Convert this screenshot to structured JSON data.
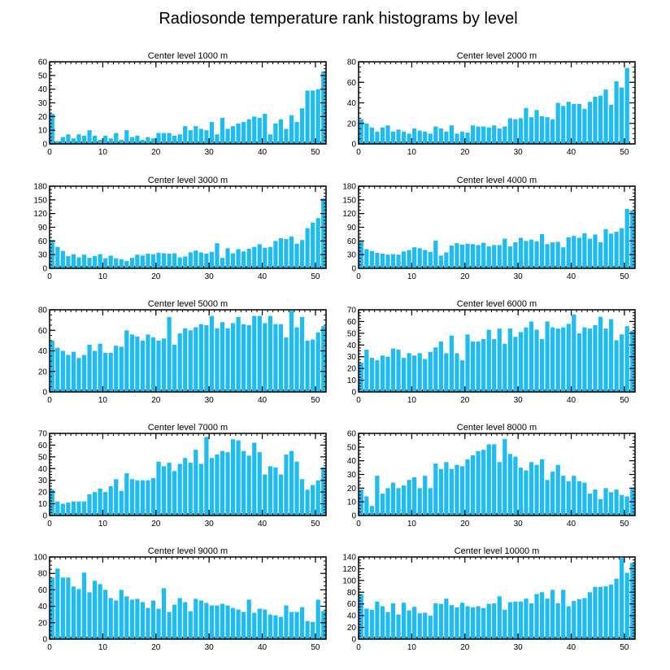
{
  "title": "Radiosonde temperature rank histograms by level",
  "colors": {
    "bar": "#1fbcf2",
    "axis": "#000000"
  },
  "chart_data": [
    {
      "type": "bar",
      "title": "Center level 1000 m",
      "x": [
        0,
        1,
        2,
        3,
        4,
        5,
        6,
        7,
        8,
        9,
        10,
        11,
        12,
        13,
        14,
        15,
        16,
        17,
        18,
        19,
        20,
        21,
        22,
        23,
        24,
        25,
        26,
        27,
        28,
        29,
        30,
        31,
        32,
        33,
        34,
        35,
        36,
        37,
        38,
        39,
        40,
        41,
        42,
        43,
        44,
        45,
        46,
        47,
        48,
        49,
        50,
        51
      ],
      "values": [
        22,
        2,
        5,
        7,
        4,
        7,
        6,
        10,
        6,
        3,
        6,
        4,
        8,
        3,
        10,
        5,
        6,
        3,
        5,
        4,
        8,
        8,
        8,
        6,
        7,
        13,
        10,
        13,
        11,
        10,
        16,
        7,
        19,
        11,
        13,
        15,
        16,
        18,
        20,
        19,
        22,
        7,
        15,
        18,
        11,
        21,
        16,
        26,
        39,
        39,
        40,
        53
      ],
      "xlim": [
        0,
        52
      ],
      "ylim": [
        0,
        60
      ],
      "xticks": [
        0,
        10,
        20,
        30,
        40,
        50
      ],
      "yticks": [
        0,
        10,
        20,
        30,
        40,
        50,
        60
      ],
      "xlabel": "",
      "ylabel": ""
    },
    {
      "type": "bar",
      "title": "Center level 2000 m",
      "x": [
        0,
        1,
        2,
        3,
        4,
        5,
        6,
        7,
        8,
        9,
        10,
        11,
        12,
        13,
        14,
        15,
        16,
        17,
        18,
        19,
        20,
        21,
        22,
        23,
        24,
        25,
        26,
        27,
        28,
        29,
        30,
        31,
        32,
        33,
        34,
        35,
        36,
        37,
        38,
        39,
        40,
        41,
        42,
        43,
        44,
        45,
        46,
        47,
        48,
        49,
        50,
        51
      ],
      "values": [
        24,
        20,
        16,
        12,
        16,
        18,
        12,
        14,
        12,
        10,
        15,
        13,
        12,
        10,
        17,
        15,
        12,
        18,
        10,
        12,
        11,
        18,
        17,
        17,
        16,
        18,
        15,
        17,
        25,
        24,
        25,
        35,
        26,
        33,
        27,
        26,
        24,
        40,
        37,
        41,
        39,
        39,
        34,
        41,
        46,
        47,
        53,
        38,
        61,
        55,
        74,
        0
      ],
      "xlim": [
        0,
        52
      ],
      "ylim": [
        0,
        80
      ],
      "xticks": [
        0,
        10,
        20,
        30,
        40,
        50
      ],
      "yticks": [
        0,
        20,
        40,
        60,
        80
      ],
      "xlabel": "",
      "ylabel": ""
    },
    {
      "type": "bar",
      "title": "Center level 3000 m",
      "x": [
        0,
        1,
        2,
        3,
        4,
        5,
        6,
        7,
        8,
        9,
        10,
        11,
        12,
        13,
        14,
        15,
        16,
        17,
        18,
        19,
        20,
        21,
        22,
        23,
        24,
        25,
        26,
        27,
        28,
        29,
        30,
        31,
        32,
        33,
        34,
        35,
        36,
        37,
        38,
        39,
        40,
        41,
        42,
        43,
        44,
        45,
        46,
        47,
        48,
        49,
        50,
        51
      ],
      "values": [
        62,
        47,
        38,
        27,
        31,
        24,
        30,
        23,
        27,
        31,
        22,
        28,
        22,
        20,
        16,
        23,
        30,
        28,
        32,
        31,
        34,
        33,
        32,
        33,
        24,
        26,
        35,
        39,
        35,
        32,
        36,
        55,
        23,
        44,
        33,
        42,
        37,
        43,
        47,
        53,
        45,
        47,
        60,
        66,
        64,
        70,
        54,
        62,
        88,
        100,
        110,
        153
      ],
      "xlim": [
        0,
        52
      ],
      "ylim": [
        0,
        180
      ],
      "xticks": [
        0,
        10,
        20,
        30,
        40,
        50
      ],
      "yticks": [
        0,
        30,
        60,
        90,
        120,
        150,
        180
      ],
      "xlabel": "",
      "ylabel": ""
    },
    {
      "type": "bar",
      "title": "Center level 4000 m",
      "x": [
        0,
        1,
        2,
        3,
        4,
        5,
        6,
        7,
        8,
        9,
        10,
        11,
        12,
        13,
        14,
        15,
        16,
        17,
        18,
        19,
        20,
        21,
        22,
        23,
        24,
        25,
        26,
        27,
        28,
        29,
        30,
        31,
        32,
        33,
        34,
        35,
        36,
        37,
        38,
        39,
        40,
        41,
        42,
        43,
        44,
        45,
        46,
        47,
        48,
        49,
        50,
        51
      ],
      "values": [
        61,
        42,
        38,
        34,
        32,
        30,
        31,
        30,
        37,
        40,
        46,
        44,
        40,
        36,
        61,
        28,
        35,
        50,
        55,
        52,
        54,
        53,
        51,
        56,
        48,
        51,
        51,
        65,
        48,
        57,
        67,
        60,
        63,
        59,
        75,
        53,
        57,
        58,
        46,
        68,
        71,
        67,
        77,
        65,
        74,
        57,
        86,
        76,
        80,
        88,
        130,
        127
      ],
      "xlim": [
        0,
        52
      ],
      "ylim": [
        0,
        180
      ],
      "xticks": [
        0,
        10,
        20,
        30,
        40,
        50
      ],
      "yticks": [
        0,
        30,
        60,
        90,
        120,
        150,
        180
      ],
      "xlabel": "",
      "ylabel": ""
    },
    {
      "type": "bar",
      "title": "Center level 5000 m",
      "x": [
        0,
        1,
        2,
        3,
        4,
        5,
        6,
        7,
        8,
        9,
        10,
        11,
        12,
        13,
        14,
        15,
        16,
        17,
        18,
        19,
        20,
        21,
        22,
        23,
        24,
        25,
        26,
        27,
        28,
        29,
        30,
        31,
        32,
        33,
        34,
        35,
        36,
        37,
        38,
        39,
        40,
        41,
        42,
        43,
        44,
        45,
        46,
        47,
        48,
        49,
        50,
        51
      ],
      "values": [
        50,
        43,
        40,
        36,
        39,
        33,
        36,
        46,
        40,
        47,
        38,
        38,
        45,
        44,
        60,
        56,
        54,
        50,
        56,
        53,
        50,
        52,
        73,
        46,
        57,
        62,
        60,
        63,
        66,
        65,
        74,
        62,
        68,
        62,
        67,
        73,
        66,
        65,
        74,
        74,
        67,
        74,
        66,
        66,
        53,
        79,
        63,
        73,
        50,
        51,
        58,
        64
      ],
      "xlim": [
        0,
        52
      ],
      "ylim": [
        0,
        80
      ],
      "xticks": [
        0,
        10,
        20,
        30,
        40,
        50
      ],
      "yticks": [
        0,
        20,
        40,
        60,
        80
      ],
      "xlabel": "",
      "ylabel": ""
    },
    {
      "type": "bar",
      "title": "Center level 6000 m",
      "x": [
        0,
        1,
        2,
        3,
        4,
        5,
        6,
        7,
        8,
        9,
        10,
        11,
        12,
        13,
        14,
        15,
        16,
        17,
        18,
        19,
        20,
        21,
        22,
        23,
        24,
        25,
        26,
        27,
        28,
        29,
        30,
        31,
        32,
        33,
        34,
        35,
        36,
        37,
        38,
        39,
        40,
        41,
        42,
        43,
        44,
        45,
        46,
        47,
        48,
        49,
        50,
        51
      ],
      "values": [
        25,
        36,
        29,
        27,
        31,
        30,
        37,
        36,
        29,
        33,
        31,
        33,
        28,
        34,
        38,
        43,
        33,
        48,
        33,
        27,
        49,
        43,
        43,
        45,
        53,
        45,
        54,
        41,
        54,
        47,
        51,
        55,
        60,
        53,
        45,
        60,
        55,
        54,
        55,
        58,
        66,
        50,
        55,
        54,
        57,
        64,
        54,
        62,
        44,
        49,
        56,
        52
      ],
      "xlim": [
        0,
        52
      ],
      "ylim": [
        0,
        70
      ],
      "xticks": [
        0,
        10,
        20,
        30,
        40,
        50
      ],
      "yticks": [
        0,
        10,
        20,
        30,
        40,
        50,
        60,
        70
      ],
      "xlabel": "",
      "ylabel": ""
    },
    {
      "type": "bar",
      "title": "Center level 7000 m",
      "x": [
        0,
        1,
        2,
        3,
        4,
        5,
        6,
        7,
        8,
        9,
        10,
        11,
        12,
        13,
        14,
        15,
        16,
        17,
        18,
        19,
        20,
        21,
        22,
        23,
        24,
        25,
        26,
        27,
        28,
        29,
        30,
        31,
        32,
        33,
        34,
        35,
        36,
        37,
        38,
        39,
        40,
        41,
        42,
        43,
        44,
        45,
        46,
        47,
        48,
        49,
        50,
        51
      ],
      "values": [
        22,
        12,
        10,
        11,
        12,
        12,
        12,
        18,
        20,
        23,
        20,
        25,
        31,
        21,
        36,
        31,
        30,
        30,
        30,
        32,
        46,
        42,
        45,
        38,
        44,
        49,
        45,
        56,
        44,
        67,
        49,
        52,
        55,
        54,
        65,
        64,
        55,
        51,
        62,
        54,
        35,
        42,
        41,
        35,
        52,
        55,
        46,
        31,
        22,
        26,
        30,
        41
      ],
      "xlim": [
        0,
        52
      ],
      "ylim": [
        0,
        70
      ],
      "xticks": [
        0,
        10,
        20,
        30,
        40,
        50
      ],
      "yticks": [
        0,
        10,
        20,
        30,
        40,
        50,
        60,
        70
      ],
      "xlabel": "",
      "ylabel": ""
    },
    {
      "type": "bar",
      "title": "Center level 8000 m",
      "x": [
        0,
        1,
        2,
        3,
        4,
        5,
        6,
        7,
        8,
        9,
        10,
        11,
        12,
        13,
        14,
        15,
        16,
        17,
        18,
        19,
        20,
        21,
        22,
        23,
        24,
        25,
        26,
        27,
        28,
        29,
        30,
        31,
        32,
        33,
        34,
        35,
        36,
        37,
        38,
        39,
        40,
        41,
        42,
        43,
        44,
        45,
        46,
        47,
        48,
        49,
        50,
        51
      ],
      "values": [
        19,
        14,
        7,
        29,
        16,
        20,
        24,
        20,
        22,
        26,
        28,
        20,
        29,
        20,
        38,
        34,
        39,
        34,
        37,
        36,
        41,
        44,
        47,
        48,
        52,
        52,
        39,
        56,
        45,
        43,
        35,
        33,
        39,
        37,
        41,
        26,
        32,
        37,
        29,
        25,
        29,
        25,
        24,
        16,
        19,
        12,
        20,
        17,
        19,
        15,
        14,
        20
      ],
      "xlim": [
        0,
        52
      ],
      "ylim": [
        0,
        60
      ],
      "xticks": [
        0,
        10,
        20,
        30,
        40,
        50
      ],
      "yticks": [
        0,
        10,
        20,
        30,
        40,
        50,
        60
      ],
      "xlabel": "",
      "ylabel": ""
    },
    {
      "type": "bar",
      "title": "Center level 9000 m",
      "x": [
        0,
        1,
        2,
        3,
        4,
        5,
        6,
        7,
        8,
        9,
        10,
        11,
        12,
        13,
        14,
        15,
        16,
        17,
        18,
        19,
        20,
        21,
        22,
        23,
        24,
        25,
        26,
        27,
        28,
        29,
        30,
        31,
        32,
        33,
        34,
        35,
        36,
        37,
        38,
        39,
        40,
        41,
        42,
        43,
        44,
        45,
        46,
        47,
        48,
        49,
        50,
        51
      ],
      "values": [
        75,
        86,
        75,
        75,
        64,
        61,
        81,
        57,
        71,
        67,
        60,
        50,
        47,
        60,
        52,
        48,
        49,
        45,
        38,
        47,
        37,
        62,
        33,
        42,
        50,
        45,
        34,
        49,
        47,
        44,
        41,
        41,
        43,
        41,
        38,
        36,
        33,
        48,
        32,
        37,
        36,
        30,
        29,
        27,
        41,
        33,
        33,
        39,
        22,
        21,
        48,
        34
      ],
      "xlim": [
        0,
        52
      ],
      "ylim": [
        0,
        100
      ],
      "xticks": [
        0,
        10,
        20,
        30,
        40,
        50
      ],
      "yticks": [
        0,
        20,
        40,
        60,
        80,
        100
      ],
      "xlabel": "",
      "ylabel": ""
    },
    {
      "type": "bar",
      "title": "Center level 10000 m",
      "x": [
        0,
        1,
        2,
        3,
        4,
        5,
        6,
        7,
        8,
        9,
        10,
        11,
        12,
        13,
        14,
        15,
        16,
        17,
        18,
        19,
        20,
        21,
        22,
        23,
        24,
        25,
        26,
        27,
        28,
        29,
        30,
        31,
        32,
        33,
        34,
        35,
        36,
        37,
        38,
        39,
        40,
        41,
        42,
        43,
        44,
        45,
        46,
        47,
        48,
        49,
        50,
        51
      ],
      "values": [
        77,
        52,
        50,
        64,
        56,
        46,
        61,
        42,
        62,
        49,
        55,
        44,
        45,
        40,
        61,
        60,
        69,
        58,
        54,
        62,
        56,
        54,
        56,
        53,
        60,
        61,
        73,
        50,
        63,
        64,
        64,
        69,
        61,
        77,
        80,
        69,
        84,
        61,
        84,
        56,
        65,
        68,
        70,
        80,
        89,
        89,
        90,
        93,
        103,
        138,
        113,
        130
      ],
      "xlim": [
        0,
        52
      ],
      "ylim": [
        0,
        140
      ],
      "xticks": [
        0,
        10,
        20,
        30,
        40,
        50
      ],
      "yticks": [
        0,
        20,
        40,
        60,
        80,
        100,
        120,
        140
      ],
      "xlabel": "",
      "ylabel": ""
    }
  ]
}
